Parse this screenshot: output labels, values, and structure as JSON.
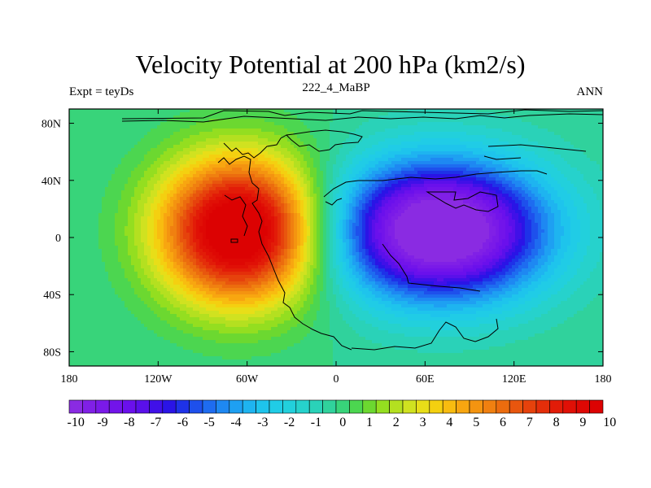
{
  "chart_data": {
    "type": "heatmap",
    "title": "Velocity Potential at 200 hPa (km2/s)",
    "left_label": "Expt = teyDs",
    "center_label": "222_4_MaBP",
    "right_label": "ANN",
    "lon_range": [
      -180,
      180
    ],
    "lat_range": [
      -90,
      90
    ],
    "x_ticks": [
      {
        "value": -180,
        "label": "180"
      },
      {
        "value": -120,
        "label": "120W"
      },
      {
        "value": -60,
        "label": "60W"
      },
      {
        "value": 0,
        "label": "0"
      },
      {
        "value": 60,
        "label": "60E"
      },
      {
        "value": 120,
        "label": "120E"
      },
      {
        "value": 180,
        "label": "180"
      }
    ],
    "y_ticks": [
      {
        "value": 80,
        "label": "80N"
      },
      {
        "value": 40,
        "label": "40N"
      },
      {
        "value": 0,
        "label": "0"
      },
      {
        "value": -40,
        "label": "40S"
      },
      {
        "value": -80,
        "label": "80S"
      }
    ],
    "field_features": [
      {
        "name": "maximum",
        "lon": -65,
        "lat": 5,
        "value": 10
      },
      {
        "name": "minimum",
        "lon": 70,
        "lat": 5,
        "value": -10
      }
    ],
    "colorbar": {
      "levels": [
        -10,
        -9.5,
        -9,
        -8.5,
        -8,
        -7.5,
        -7,
        -6.5,
        -6,
        -5.5,
        -5,
        -4.5,
        -4,
        -3.5,
        -3,
        -2.5,
        -2,
        -1.5,
        -1,
        -0.5,
        0,
        0.5,
        1,
        1.5,
        2,
        2.5,
        3,
        3.5,
        4,
        4.5,
        5,
        5.5,
        6,
        6.5,
        7,
        7.5,
        8,
        8.5,
        9,
        9.5,
        10
      ],
      "labels": [
        "-10",
        "-9",
        "-8",
        "-7",
        "-6",
        "-5",
        "-4",
        "-3",
        "-2",
        "-1",
        "0",
        "1",
        "2",
        "3",
        "4",
        "5",
        "6",
        "7",
        "8",
        "9",
        "10"
      ],
      "colors": [
        "#8a2be2",
        "#8020e6",
        "#7a1ae8",
        "#7214ea",
        "#6a10ec",
        "#5a10ea",
        "#4010e8",
        "#2a14e6",
        "#1e32e8",
        "#1e50ec",
        "#1e6cf0",
        "#1e88f2",
        "#1ea0f2",
        "#1eb4f0",
        "#1ec4ec",
        "#20cce6",
        "#22d0dc",
        "#26d2cc",
        "#2ad2b8",
        "#30d29c",
        "#38d47a",
        "#4cd650",
        "#6cd830",
        "#94de20",
        "#b4e020",
        "#d0e220",
        "#e8de18",
        "#f4d010",
        "#f8bc10",
        "#f8a610",
        "#f49410",
        "#f08010",
        "#ec6c0e",
        "#e8560e",
        "#e6420c",
        "#e42e0a",
        "#e21c08",
        "#e01006",
        "#de0804",
        "#dc0202"
      ]
    }
  }
}
